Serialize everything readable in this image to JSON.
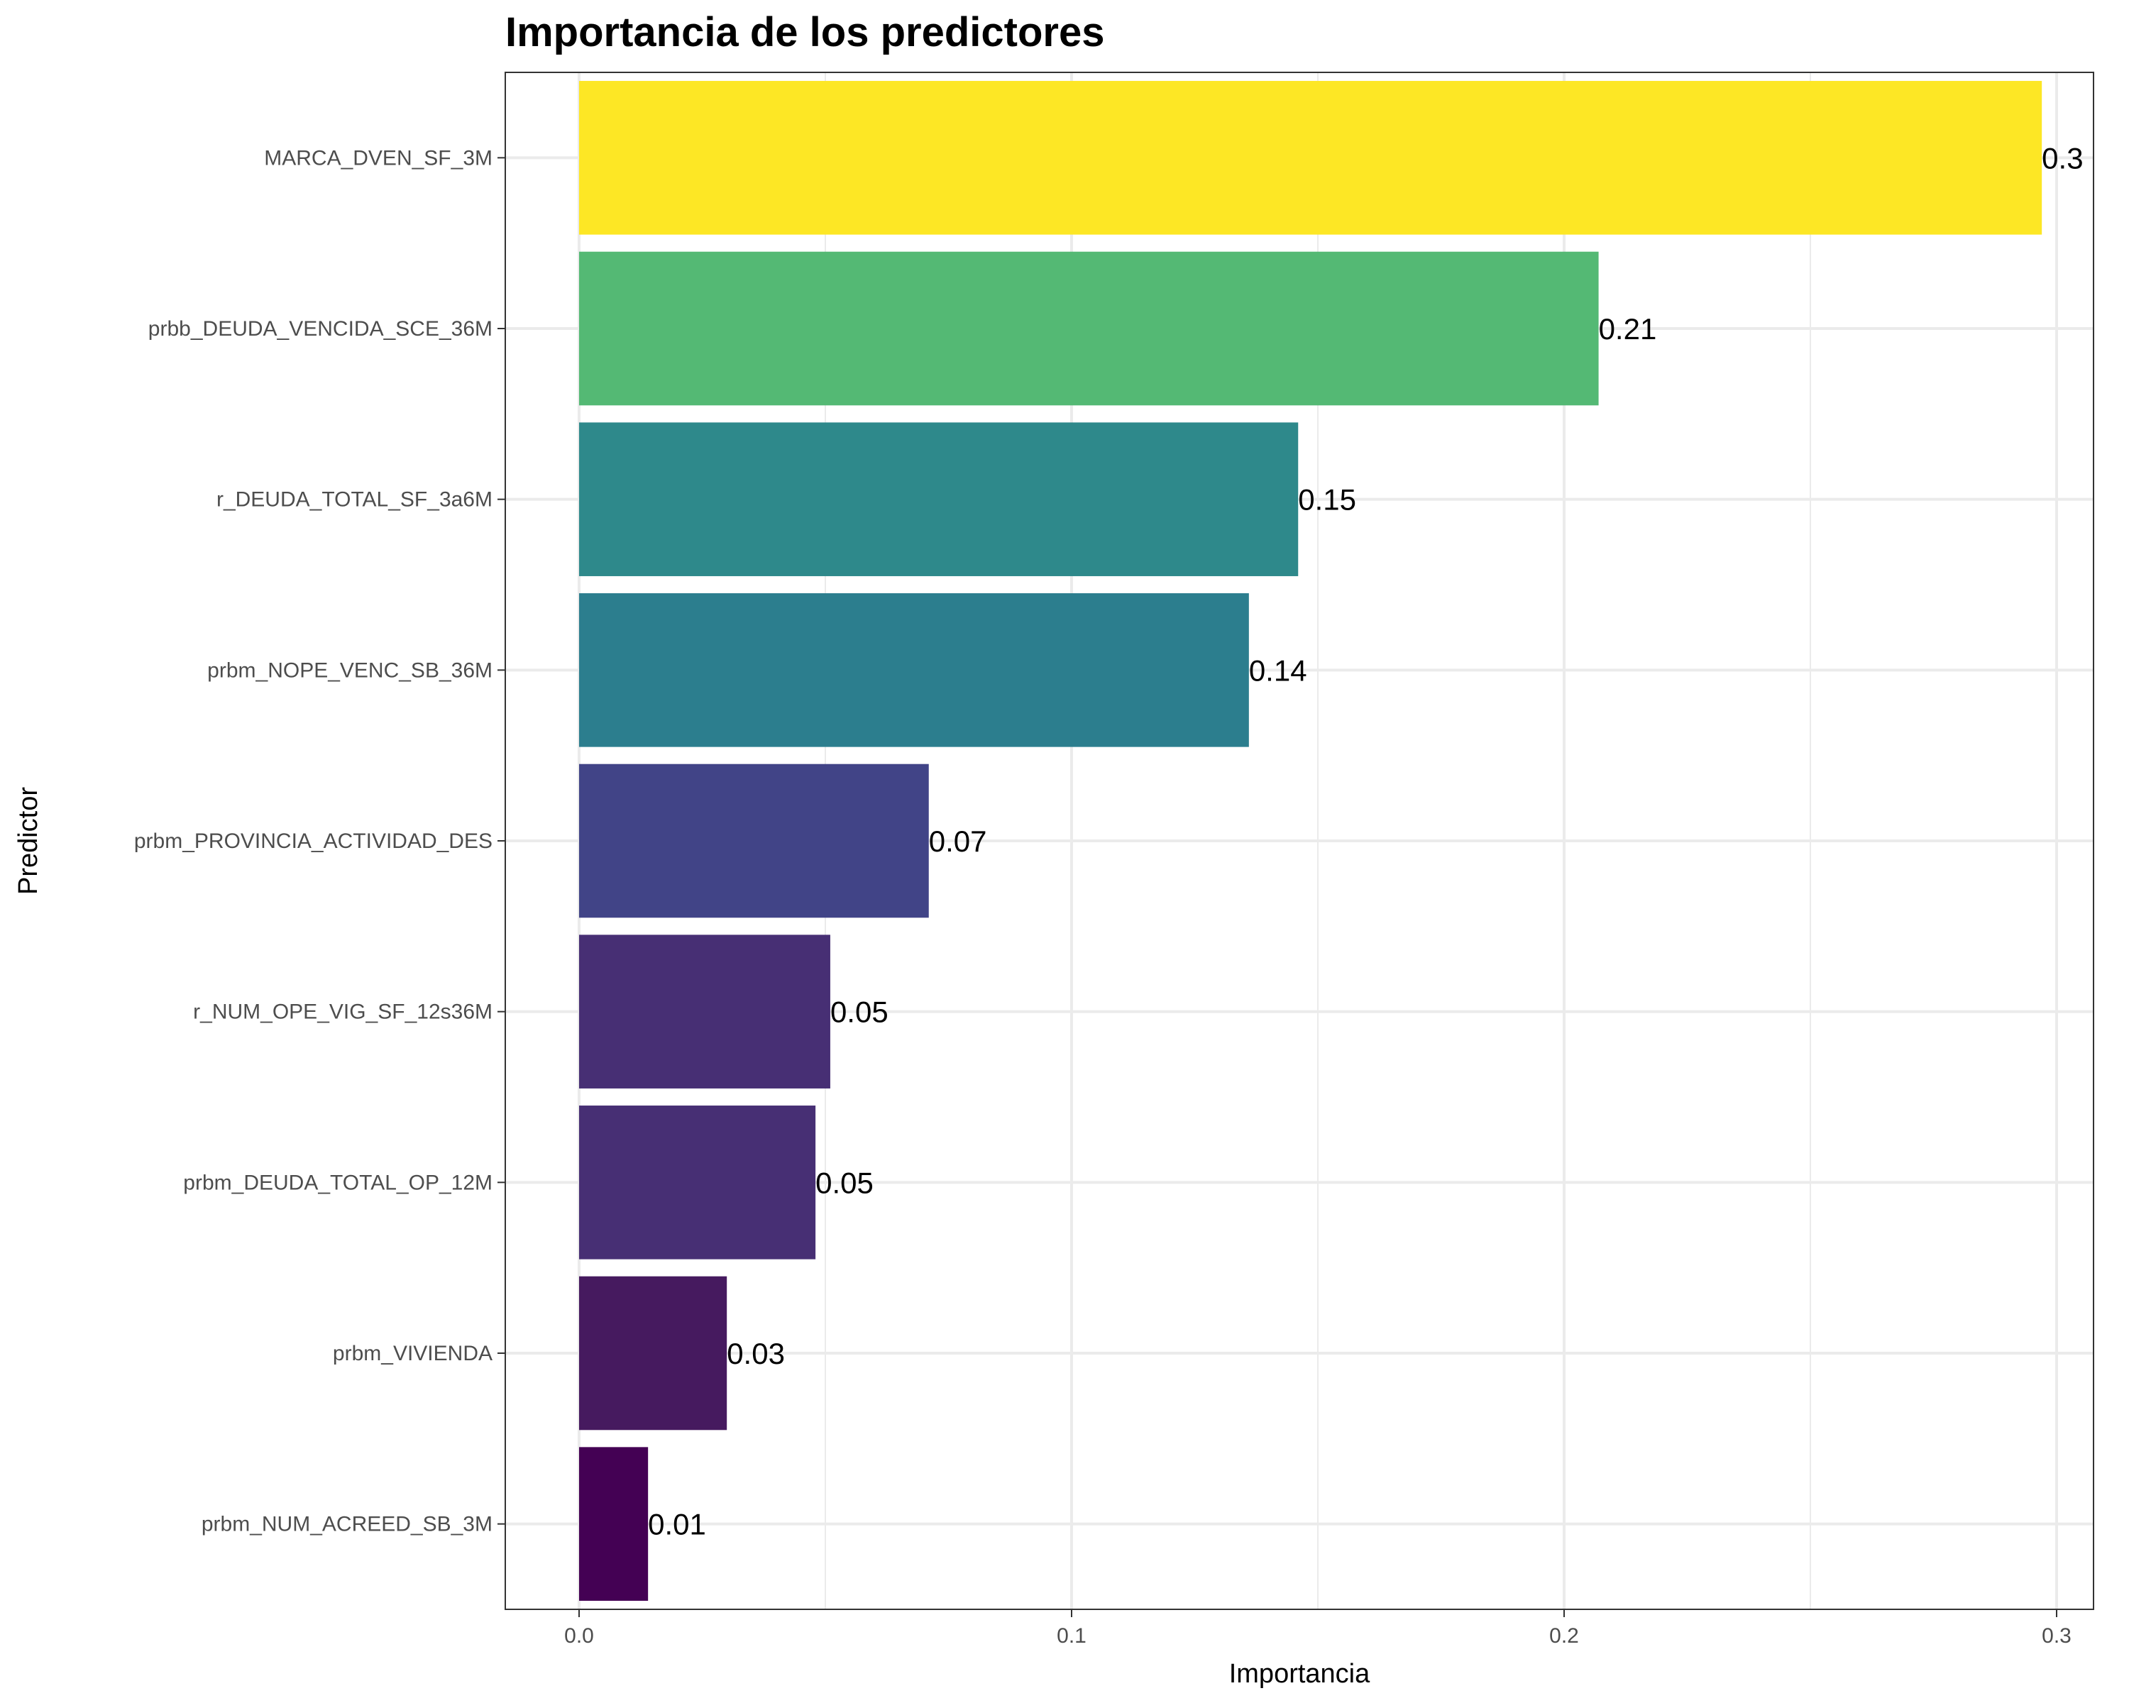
{
  "chart_data": {
    "type": "bar",
    "orientation": "horizontal",
    "title": "Importancia de los predictores",
    "xlabel": "Importancia",
    "ylabel": "Predictor",
    "xlim": [
      0,
      0.3
    ],
    "xticks": [
      0.0,
      0.1,
      0.2,
      0.3
    ],
    "xtick_labels": [
      "0.0",
      "0.1",
      "0.2",
      "0.3"
    ],
    "grid": true,
    "categories": [
      "MARCA_DVEN_SF_3M",
      "prbb_DEUDA_VENCIDA_SCE_36M",
      "r_DEUDA_TOTAL_SF_3a6M",
      "prbm_NOPE_VENC_SB_36M",
      "prbm_PROVINCIA_ACTIVIDAD_DES",
      "r_NUM_OPE_VIG_SF_12s36M",
      "prbm_DEUDA_TOTAL_OP_12M",
      "prbm_VIVIENDA",
      "prbm_NUM_ACREED_SB_3M"
    ],
    "values": [
      0.297,
      0.207,
      0.146,
      0.136,
      0.071,
      0.051,
      0.048,
      0.03,
      0.014
    ],
    "value_labels": [
      "0.3",
      "0.21",
      "0.15",
      "0.14",
      "0.07",
      "0.05",
      "0.05",
      "0.03",
      "0.01"
    ],
    "colors": [
      "#FDE725",
      "#54B974",
      "#2E898B",
      "#2C7E8E",
      "#414487",
      "#472F74",
      "#472F74",
      "#461A5F",
      "#440154"
    ]
  }
}
